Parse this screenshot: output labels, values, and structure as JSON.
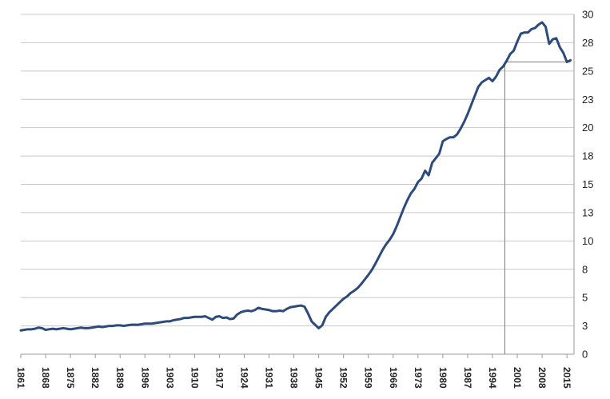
{
  "chart_data": {
    "type": "line",
    "title": "",
    "xlabel": "",
    "ylabel": "",
    "grid": true,
    "legend": "none",
    "x_range": [
      1861,
      2017
    ],
    "ylim": [
      0,
      30
    ],
    "y_axis_side": "right",
    "x_ticks": [
      "1861",
      "1868",
      "1875",
      "1882",
      "1889",
      "1896",
      "1903",
      "1910",
      "1917",
      "1924",
      "1931",
      "1938",
      "1945",
      "1952",
      "1959",
      "1966",
      "1973",
      "1980",
      "1987",
      "1994",
      "2001",
      "2008",
      "2015"
    ],
    "y_ticks": [
      "0",
      "3",
      "5",
      "8",
      "10",
      "13",
      "15",
      "18",
      "20",
      "23",
      "25",
      "28",
      "30"
    ],
    "colors": {
      "series": "#2c4a7b",
      "reference": "#5a86b0"
    },
    "series": [
      {
        "x": [
          1861,
          1862,
          1863,
          1864,
          1865,
          1866,
          1867,
          1868,
          1869,
          1870,
          1871,
          1872,
          1873,
          1874,
          1875,
          1876,
          1877,
          1878,
          1879,
          1880,
          1881,
          1882,
          1883,
          1884,
          1885,
          1886,
          1887,
          1888,
          1889,
          1890,
          1891,
          1892,
          1893,
          1894,
          1895,
          1896,
          1897,
          1898,
          1899,
          1900,
          1901,
          1902,
          1903,
          1904,
          1905,
          1906,
          1907,
          1908,
          1909,
          1910,
          1911,
          1912,
          1913,
          1914,
          1915,
          1916,
          1917,
          1918,
          1919,
          1920,
          1921,
          1922,
          1923,
          1924,
          1925,
          1926,
          1927,
          1928,
          1929,
          1930,
          1931,
          1932,
          1933,
          1934,
          1935,
          1936,
          1937,
          1938,
          1939,
          1940,
          1941,
          1942,
          1943,
          1944,
          1945,
          1946,
          1947,
          1948,
          1949,
          1950,
          1951,
          1952,
          1953,
          1954,
          1955,
          1956,
          1957,
          1958,
          1959,
          1960,
          1961,
          1962,
          1963,
          1964,
          1965,
          1966,
          1967,
          1968,
          1969,
          1970,
          1971,
          1972,
          1973,
          1974,
          1975,
          1976,
          1977,
          1978,
          1979,
          1980,
          1981,
          1982,
          1983,
          1984,
          1985,
          1986,
          1987,
          1988,
          1989,
          1990,
          1991,
          1992,
          1993,
          1994,
          1995,
          1996,
          1997,
          1998,
          1999,
          2000,
          2001,
          2002,
          2003,
          2004,
          2005,
          2006,
          2007,
          2008,
          2009,
          2010,
          2011,
          2012,
          2013,
          2014,
          2015,
          2016
        ],
        "values": [
          2.1,
          2.15,
          2.2,
          2.2,
          2.25,
          2.35,
          2.3,
          2.15,
          2.2,
          2.25,
          2.2,
          2.25,
          2.3,
          2.25,
          2.2,
          2.25,
          2.3,
          2.35,
          2.3,
          2.3,
          2.35,
          2.4,
          2.45,
          2.4,
          2.45,
          2.5,
          2.5,
          2.55,
          2.55,
          2.5,
          2.55,
          2.6,
          2.6,
          2.6,
          2.65,
          2.7,
          2.7,
          2.7,
          2.75,
          2.8,
          2.85,
          2.9,
          2.9,
          3.0,
          3.05,
          3.1,
          3.2,
          3.2,
          3.25,
          3.3,
          3.3,
          3.3,
          3.35,
          3.2,
          3.05,
          3.3,
          3.35,
          3.2,
          3.25,
          3.1,
          3.15,
          3.5,
          3.7,
          3.8,
          3.85,
          3.8,
          3.9,
          4.1,
          4.0,
          3.95,
          3.9,
          3.8,
          3.8,
          3.85,
          3.8,
          4.0,
          4.15,
          4.2,
          4.25,
          4.3,
          4.2,
          3.6,
          2.9,
          2.6,
          2.3,
          2.55,
          3.3,
          3.7,
          4.0,
          4.3,
          4.6,
          4.9,
          5.1,
          5.4,
          5.6,
          5.85,
          6.2,
          6.6,
          7.0,
          7.45,
          8.0,
          8.6,
          9.2,
          9.7,
          10.1,
          10.6,
          11.3,
          12.1,
          12.9,
          13.6,
          14.2,
          14.6,
          15.2,
          15.5,
          16.2,
          15.8,
          16.9,
          17.3,
          17.7,
          18.8,
          19.0,
          19.15,
          19.15,
          19.4,
          19.9,
          20.5,
          21.2,
          22.0,
          22.8,
          23.6,
          24.0,
          24.2,
          24.4,
          24.1,
          24.5,
          25.1,
          25.4,
          25.9,
          26.5,
          26.8,
          27.6,
          28.3,
          28.4,
          28.4,
          28.7,
          28.8,
          29.1,
          29.3,
          28.9,
          27.4,
          27.8,
          27.9,
          27.1,
          26.6,
          25.8,
          25.95
        ]
      }
    ],
    "reference_lines": [
      {
        "type": "vertical",
        "x": 1997.5,
        "y_from": 0,
        "y_to": 25.8
      },
      {
        "type": "horizontal",
        "y": 25.8,
        "x_from": 1997.5,
        "x_to": 2016
      }
    ]
  }
}
